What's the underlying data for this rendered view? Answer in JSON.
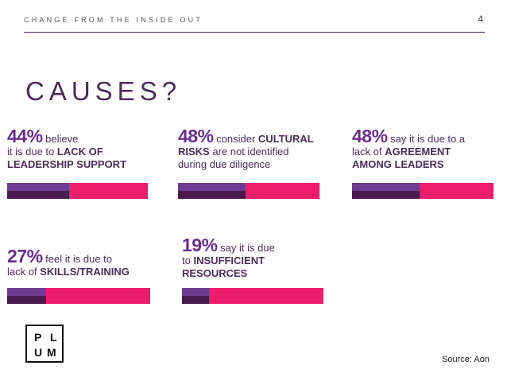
{
  "header": {
    "text": "CHANGE FROM THE INSIDE OUT",
    "page_number": "4"
  },
  "title": "CAUSES?",
  "stats": [
    {
      "percent": "44%",
      "fraction": 0.44,
      "lines": [
        [
          {
            "t": "believe",
            "b": false
          }
        ],
        [
          {
            "t": "it is due to ",
            "b": false
          },
          {
            "t": "LACK OF",
            "b": true
          }
        ],
        [
          {
            "t": "LEADERSHIP SUPPORT",
            "b": true
          }
        ]
      ]
    },
    {
      "percent": "48%",
      "fraction": 0.48,
      "lines": [
        [
          {
            "t": "consider ",
            "b": false
          },
          {
            "t": "CULTURAL",
            "b": true
          }
        ],
        [
          {
            "t": "RISKS",
            "b": true
          },
          {
            "t": " are not identified",
            "b": false
          }
        ],
        [
          {
            "t": "during due diligence",
            "b": false
          }
        ]
      ]
    },
    {
      "percent": "48%",
      "fraction": 0.48,
      "lines": [
        [
          {
            "t": "say it is due to a",
            "b": false
          }
        ],
        [
          {
            "t": "lack of ",
            "b": false
          },
          {
            "t": "AGREEMENT",
            "b": true
          }
        ],
        [
          {
            "t": "AMONG LEADERS",
            "b": true
          }
        ]
      ]
    },
    {
      "percent": "27%",
      "fraction": 0.27,
      "lines": [
        [
          {
            "t": "feel it is due to",
            "b": false
          }
        ],
        [
          {
            "t": "lack of ",
            "b": false
          },
          {
            "t": "SKILLS/TRAINING",
            "b": true
          }
        ]
      ]
    },
    {
      "percent": "19%",
      "fraction": 0.19,
      "lines": [
        [
          {
            "t": "say it is due",
            "b": false
          }
        ],
        [
          {
            "t": "to ",
            "b": false
          },
          {
            "t": "INSUFFICIENT",
            "b": true
          }
        ],
        [
          {
            "t": "RESOURCES",
            "b": true
          }
        ]
      ]
    }
  ],
  "logo": {
    "letters": [
      "P",
      "L",
      "U",
      "M"
    ]
  },
  "source": "Source: Aon",
  "colors": {
    "accent_pink": "#ec1e6c",
    "purple_light": "#6f3b92",
    "purple_dark": "#4a1a4e",
    "title_purple": "#4b2d5a"
  }
}
